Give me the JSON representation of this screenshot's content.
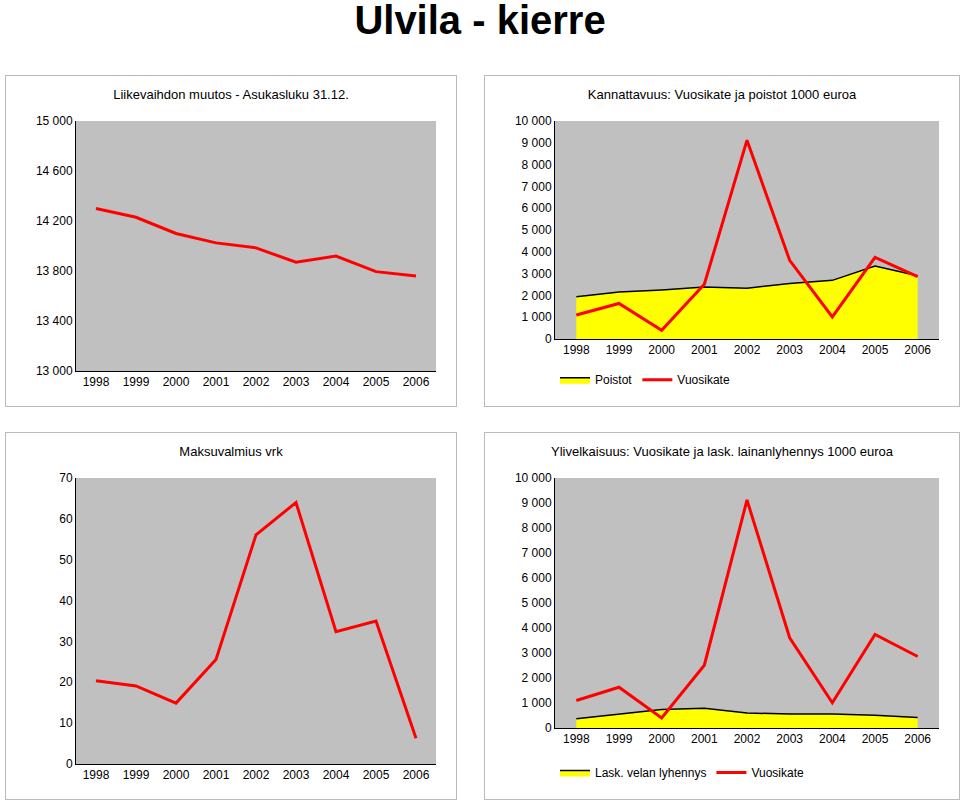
{
  "page_title": "Ulvila - kierre",
  "chart_data": [
    {
      "type": "line",
      "title": "Liikevaihdon muutos - Asukasluku 31.12.",
      "categories": [
        "1998",
        "1999",
        "2000",
        "2001",
        "2002",
        "2003",
        "2004",
        "2005",
        "2006"
      ],
      "series": [
        {
          "name": "Asukasluku",
          "color": "#ff0000",
          "type": "line",
          "values": [
            14300,
            14230,
            14100,
            14025,
            13985,
            13870,
            13920,
            13795,
            13760
          ]
        }
      ],
      "ylim": [
        13000,
        15000
      ],
      "yticks": [
        {
          "value": 13000,
          "label": "13 000"
        },
        {
          "value": 13400,
          "label": "13 400"
        },
        {
          "value": 13800,
          "label": "13 800"
        },
        {
          "value": 14200,
          "label": "14 200"
        },
        {
          "value": 14600,
          "label": "14 600"
        },
        {
          "value": 15000,
          "label": "15 000"
        }
      ],
      "grid": false
    },
    {
      "type": "line",
      "title": "Kannattavuus: Vuosikate ja poistot 1000 euroa",
      "categories": [
        "1998",
        "1999",
        "2000",
        "2001",
        "2002",
        "2003",
        "2004",
        "2005",
        "2006"
      ],
      "series": [
        {
          "name": "Poistot",
          "color": "#ffff00",
          "type": "area",
          "values": [
            1940,
            2160,
            2250,
            2380,
            2330,
            2550,
            2690,
            3350,
            2900
          ]
        },
        {
          "name": "Vuosikate",
          "color": "#ff0000",
          "type": "line",
          "values": [
            1100,
            1630,
            400,
            2510,
            9120,
            3610,
            1010,
            3740,
            2860
          ]
        }
      ],
      "ylim": [
        0,
        10000
      ],
      "yticks": [
        0,
        {
          "value": 1000,
          "label": "1 000"
        },
        {
          "value": 2000,
          "label": "2 000"
        },
        {
          "value": 3000,
          "label": "3 000"
        },
        {
          "value": 4000,
          "label": "4 000"
        },
        {
          "value": 5000,
          "label": "5 000"
        },
        {
          "value": 6000,
          "label": "6 000"
        },
        {
          "value": 7000,
          "label": "7 000"
        },
        {
          "value": 8000,
          "label": "8 000"
        },
        {
          "value": 9000,
          "label": "9 000"
        },
        {
          "value": 10000,
          "label": "10 000"
        }
      ],
      "grid": false,
      "legend": "bottom"
    },
    {
      "type": "line",
      "title": "Maksuvalmius vrk",
      "categories": [
        "1998",
        "1999",
        "2000",
        "2001",
        "2002",
        "2003",
        "2004",
        "2005",
        "2006"
      ],
      "series": [
        {
          "name": "Maksuvalmius",
          "color": "#ff0000",
          "type": "line",
          "values": [
            20.4,
            19.1,
            14.9,
            25.6,
            56.1,
            64,
            32.4,
            35,
            6.3
          ]
        }
      ],
      "ylim": [
        0,
        70
      ],
      "yticks": [
        0,
        10,
        20,
        30,
        40,
        50,
        60,
        70
      ],
      "grid": false
    },
    {
      "type": "line",
      "title": "Ylivelkaisuus: Vuosikate ja lask. lainanlyhennys 1000 euroa",
      "categories": [
        "1998",
        "1999",
        "2000",
        "2001",
        "2002",
        "2003",
        "2004",
        "2005",
        "2006"
      ],
      "series": [
        {
          "name": "Lask. velan lyhennys",
          "color": "#ffff00",
          "type": "area",
          "values": [
            370,
            560,
            740,
            790,
            600,
            560,
            560,
            510,
            420
          ]
        },
        {
          "name": "Vuosikate",
          "color": "#ff0000",
          "type": "line",
          "values": [
            1100,
            1630,
            400,
            2510,
            9120,
            3610,
            1010,
            3740,
            2860
          ]
        }
      ],
      "ylim": [
        0,
        10000
      ],
      "yticks": [
        0,
        {
          "value": 1000,
          "label": "1 000"
        },
        {
          "value": 2000,
          "label": "2 000"
        },
        {
          "value": 3000,
          "label": "3 000"
        },
        {
          "value": 4000,
          "label": "4 000"
        },
        {
          "value": 5000,
          "label": "5 000"
        },
        {
          "value": 6000,
          "label": "6 000"
        },
        {
          "value": 7000,
          "label": "7 000"
        },
        {
          "value": 8000,
          "label": "8 000"
        },
        {
          "value": 9000,
          "label": "9 000"
        },
        {
          "value": 10000,
          "label": "10 000"
        }
      ],
      "grid": false,
      "legend": "bottom"
    }
  ]
}
